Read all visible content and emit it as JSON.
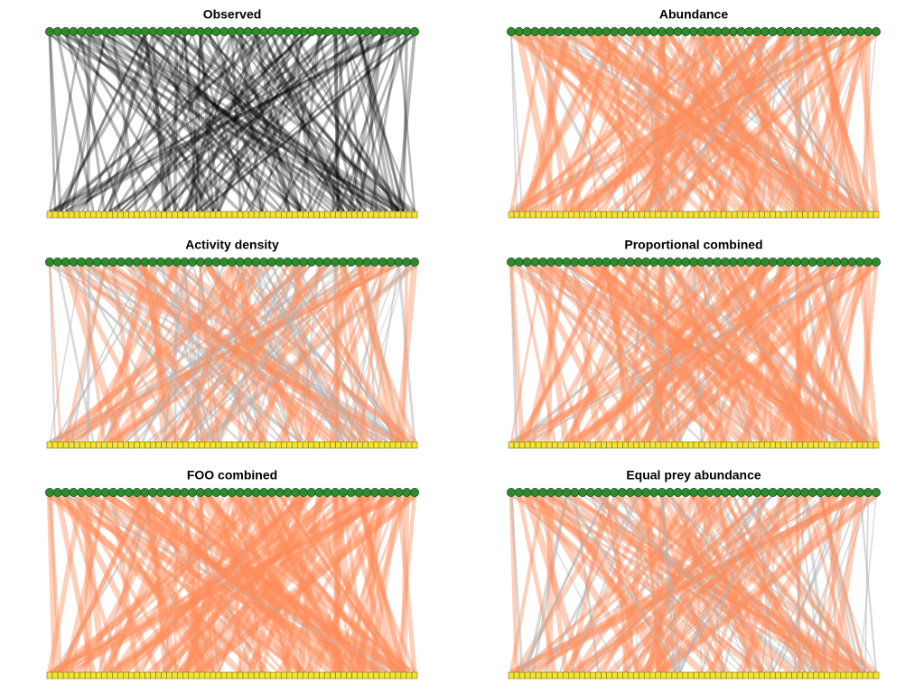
{
  "figure": {
    "panels": [
      {
        "title": "Observed",
        "mode": "observed"
      },
      {
        "title": "Abundance",
        "mode": "abundance"
      },
      {
        "title": "Activity density",
        "mode": "activity"
      },
      {
        "title": "Proportional combined",
        "mode": "proportional"
      },
      {
        "title": "FOO combined",
        "mode": "foo"
      },
      {
        "title": "Equal prey abundance",
        "mode": "equal"
      }
    ],
    "upper_level_nodes": 47,
    "lower_level_nodes": 68,
    "colors": {
      "observed_link": "#000000",
      "predicted_link": "#ff8c5a",
      "mismatch_link": "#b4b4b4",
      "upper_node_fill": "#2e8b2e",
      "upper_node_stroke": "#1a4d1a",
      "lower_node_fill": "#f2e23a",
      "lower_node_stroke": "#7a6f10"
    }
  }
}
